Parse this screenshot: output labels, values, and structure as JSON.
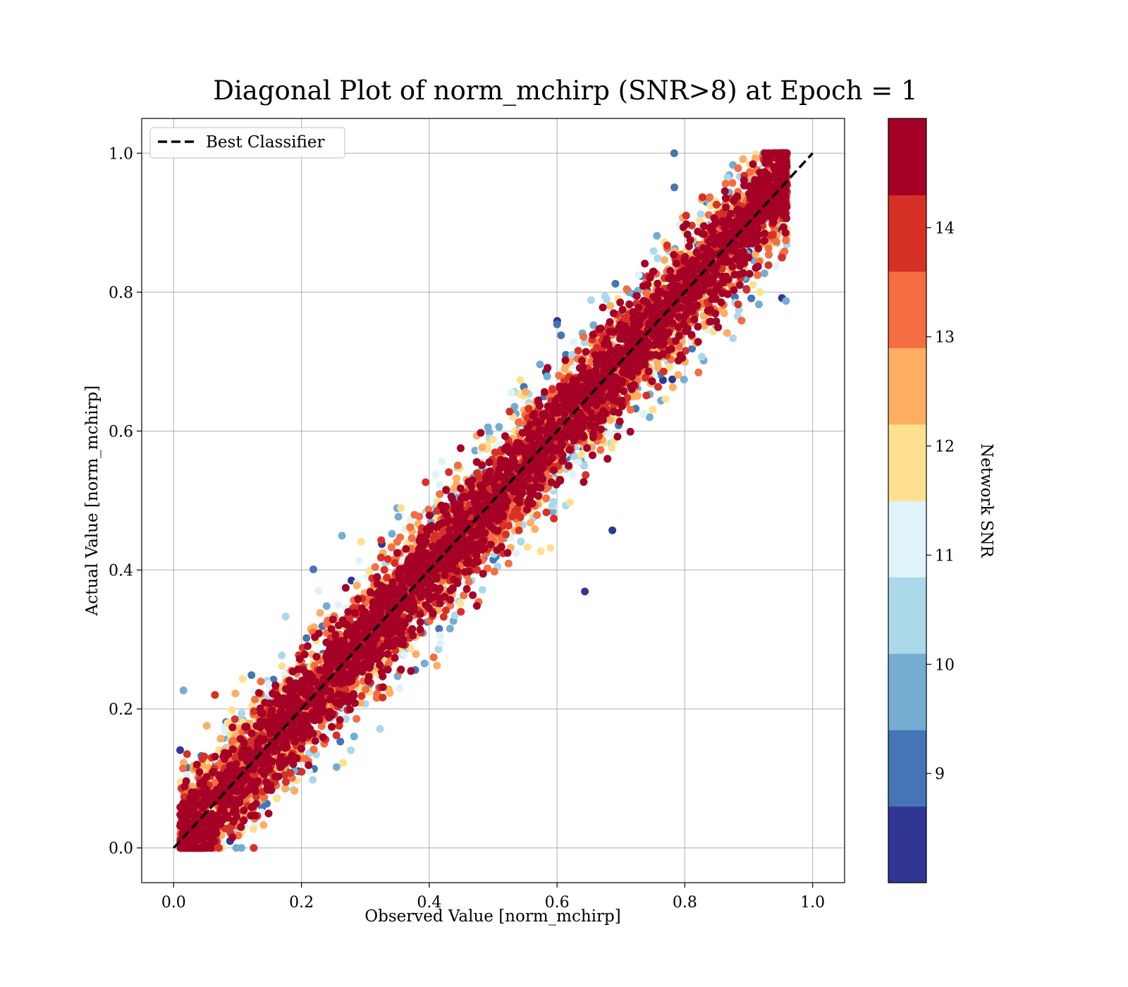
{
  "chart_data": {
    "type": "scatter",
    "title": "Diagonal Plot of norm_mchirp (SNR>8) at Epoch = 1",
    "xlabel": "Observed Value [norm_mchirp]",
    "ylabel": "Actual Value [norm_mchirp]",
    "xlim": [
      -0.05,
      1.05
    ],
    "ylim": [
      -0.05,
      1.05
    ],
    "xticks": [
      "0.0",
      "0.2",
      "0.4",
      "0.6",
      "0.8",
      "1.0"
    ],
    "yticks": [
      "0.0",
      "0.2",
      "0.4",
      "0.6",
      "0.8",
      "1.0"
    ],
    "grid": true,
    "legend": {
      "placement": "upper-left",
      "entries": [
        {
          "label": "Best Classifier",
          "style": "dashed",
          "color": "#000000"
        }
      ]
    },
    "reference_line": {
      "x": [
        0.0,
        1.0
      ],
      "y": [
        0.0,
        1.0
      ]
    },
    "colorbar": {
      "label": "Network SNR",
      "range": [
        8.0,
        15.0
      ],
      "ticks": [
        "9",
        "10",
        "11",
        "12",
        "13",
        "14"
      ],
      "colors": [
        "#313695",
        "#4575b4",
        "#74add1",
        "#abd9e9",
        "#e0f3f8",
        "#fee090",
        "#fdae61",
        "#f46d43",
        "#d73027",
        "#a50026"
      ]
    },
    "scatter_description": {
      "point_count_estimate": 50000,
      "trend": "points scattered around y = x; high-SNR points cluster near the diagonal, low-SNR points spread further",
      "x_range": [
        0.01,
        0.96
      ],
      "y_range": [
        0.0,
        1.0
      ]
    }
  }
}
